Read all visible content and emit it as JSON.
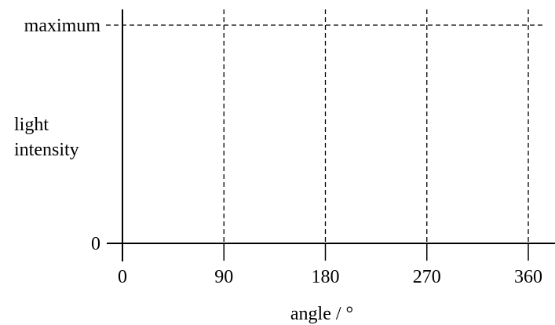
{
  "chart_data": {
    "type": "line",
    "title": "",
    "xlabel": "angle / °",
    "ylabel_lines": [
      "light",
      "intensity"
    ],
    "x_ticks": [
      0,
      90,
      180,
      270,
      360
    ],
    "x_tick_labels": [
      "0",
      "90",
      "180",
      "270",
      "360"
    ],
    "xlim": [
      0,
      360
    ],
    "y_ticks": [
      "0",
      "maximum"
    ],
    "ylim": [
      0,
      1
    ],
    "gridlines": {
      "vertical_at": [
        90,
        180,
        270,
        360
      ],
      "horizontal_at": [
        "maximum"
      ],
      "style": "dashed"
    },
    "series": []
  }
}
